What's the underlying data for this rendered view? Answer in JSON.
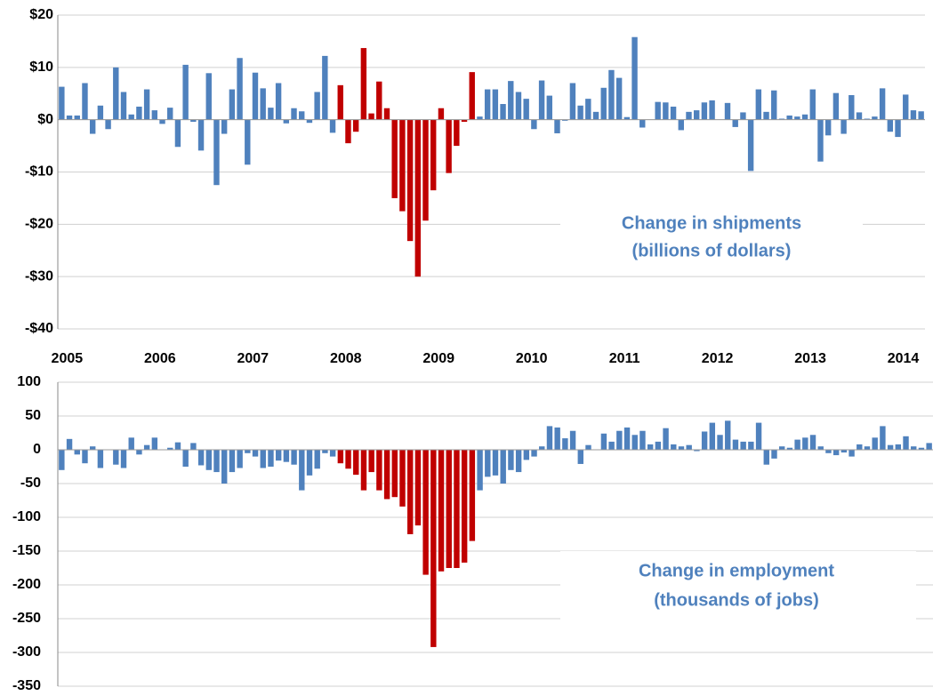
{
  "chart_data": [
    {
      "type": "bar",
      "annotation": [
        "Change in shipments",
        "(billions of dollars)"
      ],
      "categories": [
        "2005",
        null,
        null,
        null,
        null,
        null,
        null,
        null,
        null,
        null,
        null,
        null,
        "2006",
        null,
        null,
        null,
        null,
        null,
        null,
        null,
        null,
        null,
        null,
        null,
        "2007",
        null,
        null,
        null,
        null,
        null,
        null,
        null,
        null,
        null,
        null,
        null,
        "2008",
        null,
        null,
        null,
        null,
        null,
        null,
        null,
        null,
        null,
        null,
        null,
        "2009",
        null,
        null,
        null,
        null,
        null,
        null,
        null,
        null,
        null,
        null,
        null,
        "2010",
        null,
        null,
        null,
        null,
        null,
        null,
        null,
        null,
        null,
        null,
        null,
        "2011",
        null,
        null,
        null,
        null,
        null,
        null,
        null,
        null,
        null,
        null,
        null,
        "2012",
        null,
        null,
        null,
        null,
        null,
        null,
        null,
        null,
        null,
        null,
        null,
        "2013",
        null,
        null,
        null,
        null,
        null,
        null,
        null,
        null,
        null,
        null,
        null,
        "2014",
        null,
        null,
        null
      ],
      "values": [
        6.3,
        0.8,
        0.8,
        7,
        -2.7,
        2.7,
        -1.8,
        10,
        5.3,
        1,
        2.5,
        5.8,
        1.8,
        -0.8,
        2.3,
        -5.2,
        10.5,
        -0.4,
        -5.9,
        8.9,
        -12.5,
        -2.7,
        5.8,
        11.8,
        -8.6,
        9,
        6,
        2.3,
        7,
        -0.7,
        2.2,
        1.6,
        -0.6,
        5.3,
        12.2,
        -2.5,
        6.6,
        -4.5,
        -2.3,
        13.7,
        1.2,
        7.3,
        2.2,
        -15,
        -17.5,
        -23.2,
        -30,
        -19.3,
        -13.5,
        2.2,
        -10.2,
        -5,
        -0.4,
        9.1,
        0.6,
        5.8,
        5.8,
        3,
        7.4,
        5.3,
        4,
        -1.8,
        7.5,
        4.6,
        -2.6,
        -0.2,
        7,
        2.7,
        4,
        1.5,
        6.1,
        9.5,
        8,
        0.5,
        15.8,
        -1.5,
        0,
        3.4,
        3.3,
        2.5,
        -2,
        1.5,
        1.8,
        3.3,
        3.7,
        0,
        3.2,
        -1.4,
        1.4,
        -9.8,
        5.8,
        1.5,
        5.6,
        0.2,
        0.8,
        0.6,
        1,
        5.8,
        -8,
        -3,
        5.1,
        -2.7,
        4.7,
        1.4,
        0.2,
        0.6,
        6,
        -2.3,
        -3.3,
        4.8,
        1.8,
        1.6
      ],
      "colors": [
        "#4f81bd",
        "#4f81bd",
        "#4f81bd",
        "#4f81bd",
        "#4f81bd",
        "#4f81bd",
        "#4f81bd",
        "#4f81bd",
        "#4f81bd",
        "#4f81bd",
        "#4f81bd",
        "#4f81bd",
        "#4f81bd",
        "#4f81bd",
        "#4f81bd",
        "#4f81bd",
        "#4f81bd",
        "#4f81bd",
        "#4f81bd",
        "#4f81bd",
        "#4f81bd",
        "#4f81bd",
        "#4f81bd",
        "#4f81bd",
        "#4f81bd",
        "#4f81bd",
        "#4f81bd",
        "#4f81bd",
        "#4f81bd",
        "#4f81bd",
        "#4f81bd",
        "#4f81bd",
        "#4f81bd",
        "#4f81bd",
        "#4f81bd",
        "#4f81bd",
        "#c00000",
        "#c00000",
        "#c00000",
        "#c00000",
        "#c00000",
        "#c00000",
        "#c00000",
        "#c00000",
        "#c00000",
        "#c00000",
        "#c00000",
        "#c00000",
        "#c00000",
        "#c00000",
        "#c00000",
        "#c00000",
        "#c00000",
        "#c00000",
        "#4f81bd",
        "#4f81bd",
        "#4f81bd",
        "#4f81bd",
        "#4f81bd",
        "#4f81bd",
        "#4f81bd",
        "#4f81bd",
        "#4f81bd",
        "#4f81bd",
        "#4f81bd",
        "#4f81bd",
        "#4f81bd",
        "#4f81bd",
        "#4f81bd",
        "#4f81bd",
        "#4f81bd",
        "#4f81bd",
        "#4f81bd",
        "#4f81bd",
        "#4f81bd",
        "#4f81bd",
        "#4f81bd",
        "#4f81bd",
        "#4f81bd",
        "#4f81bd",
        "#4f81bd",
        "#4f81bd",
        "#4f81bd",
        "#4f81bd",
        "#4f81bd",
        "#4f81bd",
        "#4f81bd",
        "#4f81bd",
        "#4f81bd",
        "#4f81bd",
        "#4f81bd",
        "#4f81bd",
        "#4f81bd",
        "#4f81bd",
        "#4f81bd",
        "#4f81bd",
        "#4f81bd",
        "#4f81bd",
        "#4f81bd",
        "#4f81bd",
        "#4f81bd",
        "#4f81bd",
        "#4f81bd",
        "#4f81bd",
        "#4f81bd",
        "#4f81bd",
        "#4f81bd",
        "#4f81bd",
        "#4f81bd",
        "#4f81bd",
        "#4f81bd",
        "#4f81bd"
      ],
      "ylim": [
        -40,
        20
      ],
      "yticks": [
        {
          "value": 20,
          "label": "$20"
        },
        {
          "value": 10,
          "label": "$10"
        },
        {
          "value": 0,
          "label": "$0"
        },
        {
          "value": -10,
          "label": "-$10"
        },
        {
          "value": -20,
          "label": "-$20"
        },
        {
          "value": -30,
          "label": "-$30"
        },
        {
          "value": -40,
          "label": "-$40"
        }
      ],
      "grid": true
    },
    {
      "type": "bar",
      "annotation": [
        "Change in employment",
        "(thousands of jobs)"
      ],
      "values": [
        -30,
        16,
        -7,
        -20,
        5,
        -27,
        0,
        -22,
        -27,
        18,
        -7,
        7,
        18,
        0,
        3,
        11,
        -25,
        10,
        -23,
        -30,
        -33,
        -50,
        -33,
        -27,
        -5,
        -10,
        -27,
        -25,
        -16,
        -18,
        -22,
        -60,
        -38,
        -28,
        -5,
        -10,
        -20,
        -28,
        -37,
        -60,
        -33,
        -60,
        -73,
        -70,
        -84,
        -125,
        -112,
        -185,
        -292,
        -180,
        -175,
        -175,
        -167,
        -135,
        -60,
        -40,
        -38,
        -50,
        -30,
        -33,
        -15,
        -10,
        5,
        35,
        33,
        17,
        28,
        -21,
        7,
        0,
        24,
        12,
        28,
        33,
        22,
        28,
        8,
        12,
        32,
        8,
        5,
        7,
        -2,
        27,
        40,
        22,
        43,
        15,
        12,
        12,
        40,
        -22,
        -13,
        5,
        3,
        15,
        18,
        22,
        5,
        -5,
        -8,
        -4,
        -10,
        8,
        5,
        18,
        35,
        7,
        8,
        20,
        5,
        3,
        10
      ],
      "colors": [
        "#4f81bd",
        "#4f81bd",
        "#4f81bd",
        "#4f81bd",
        "#4f81bd",
        "#4f81bd",
        "#4f81bd",
        "#4f81bd",
        "#4f81bd",
        "#4f81bd",
        "#4f81bd",
        "#4f81bd",
        "#4f81bd",
        "#4f81bd",
        "#4f81bd",
        "#4f81bd",
        "#4f81bd",
        "#4f81bd",
        "#4f81bd",
        "#4f81bd",
        "#4f81bd",
        "#4f81bd",
        "#4f81bd",
        "#4f81bd",
        "#4f81bd",
        "#4f81bd",
        "#4f81bd",
        "#4f81bd",
        "#4f81bd",
        "#4f81bd",
        "#4f81bd",
        "#4f81bd",
        "#4f81bd",
        "#4f81bd",
        "#4f81bd",
        "#4f81bd",
        "#c00000",
        "#c00000",
        "#c00000",
        "#c00000",
        "#c00000",
        "#c00000",
        "#c00000",
        "#c00000",
        "#c00000",
        "#c00000",
        "#c00000",
        "#c00000",
        "#c00000",
        "#c00000",
        "#c00000",
        "#c00000",
        "#c00000",
        "#c00000",
        "#4f81bd",
        "#4f81bd",
        "#4f81bd",
        "#4f81bd",
        "#4f81bd",
        "#4f81bd",
        "#4f81bd",
        "#4f81bd",
        "#4f81bd",
        "#4f81bd",
        "#4f81bd",
        "#4f81bd",
        "#4f81bd",
        "#4f81bd",
        "#4f81bd",
        "#4f81bd",
        "#4f81bd",
        "#4f81bd",
        "#4f81bd",
        "#4f81bd",
        "#4f81bd",
        "#4f81bd",
        "#4f81bd",
        "#4f81bd",
        "#4f81bd",
        "#4f81bd",
        "#4f81bd",
        "#4f81bd",
        "#4f81bd",
        "#4f81bd",
        "#4f81bd",
        "#4f81bd",
        "#4f81bd",
        "#4f81bd",
        "#4f81bd",
        "#4f81bd",
        "#4f81bd",
        "#4f81bd",
        "#4f81bd",
        "#4f81bd",
        "#4f81bd",
        "#4f81bd",
        "#4f81bd",
        "#4f81bd",
        "#4f81bd",
        "#4f81bd",
        "#4f81bd",
        "#4f81bd",
        "#4f81bd",
        "#4f81bd",
        "#4f81bd",
        "#4f81bd",
        "#4f81bd",
        "#4f81bd",
        "#4f81bd",
        "#4f81bd",
        "#4f81bd",
        "#4f81bd",
        "#4f81bd"
      ],
      "ylim": [
        -350,
        100
      ],
      "yticks": [
        100,
        50,
        0,
        -50,
        -100,
        -150,
        -200,
        -250,
        -300,
        -350
      ],
      "grid": true
    }
  ]
}
